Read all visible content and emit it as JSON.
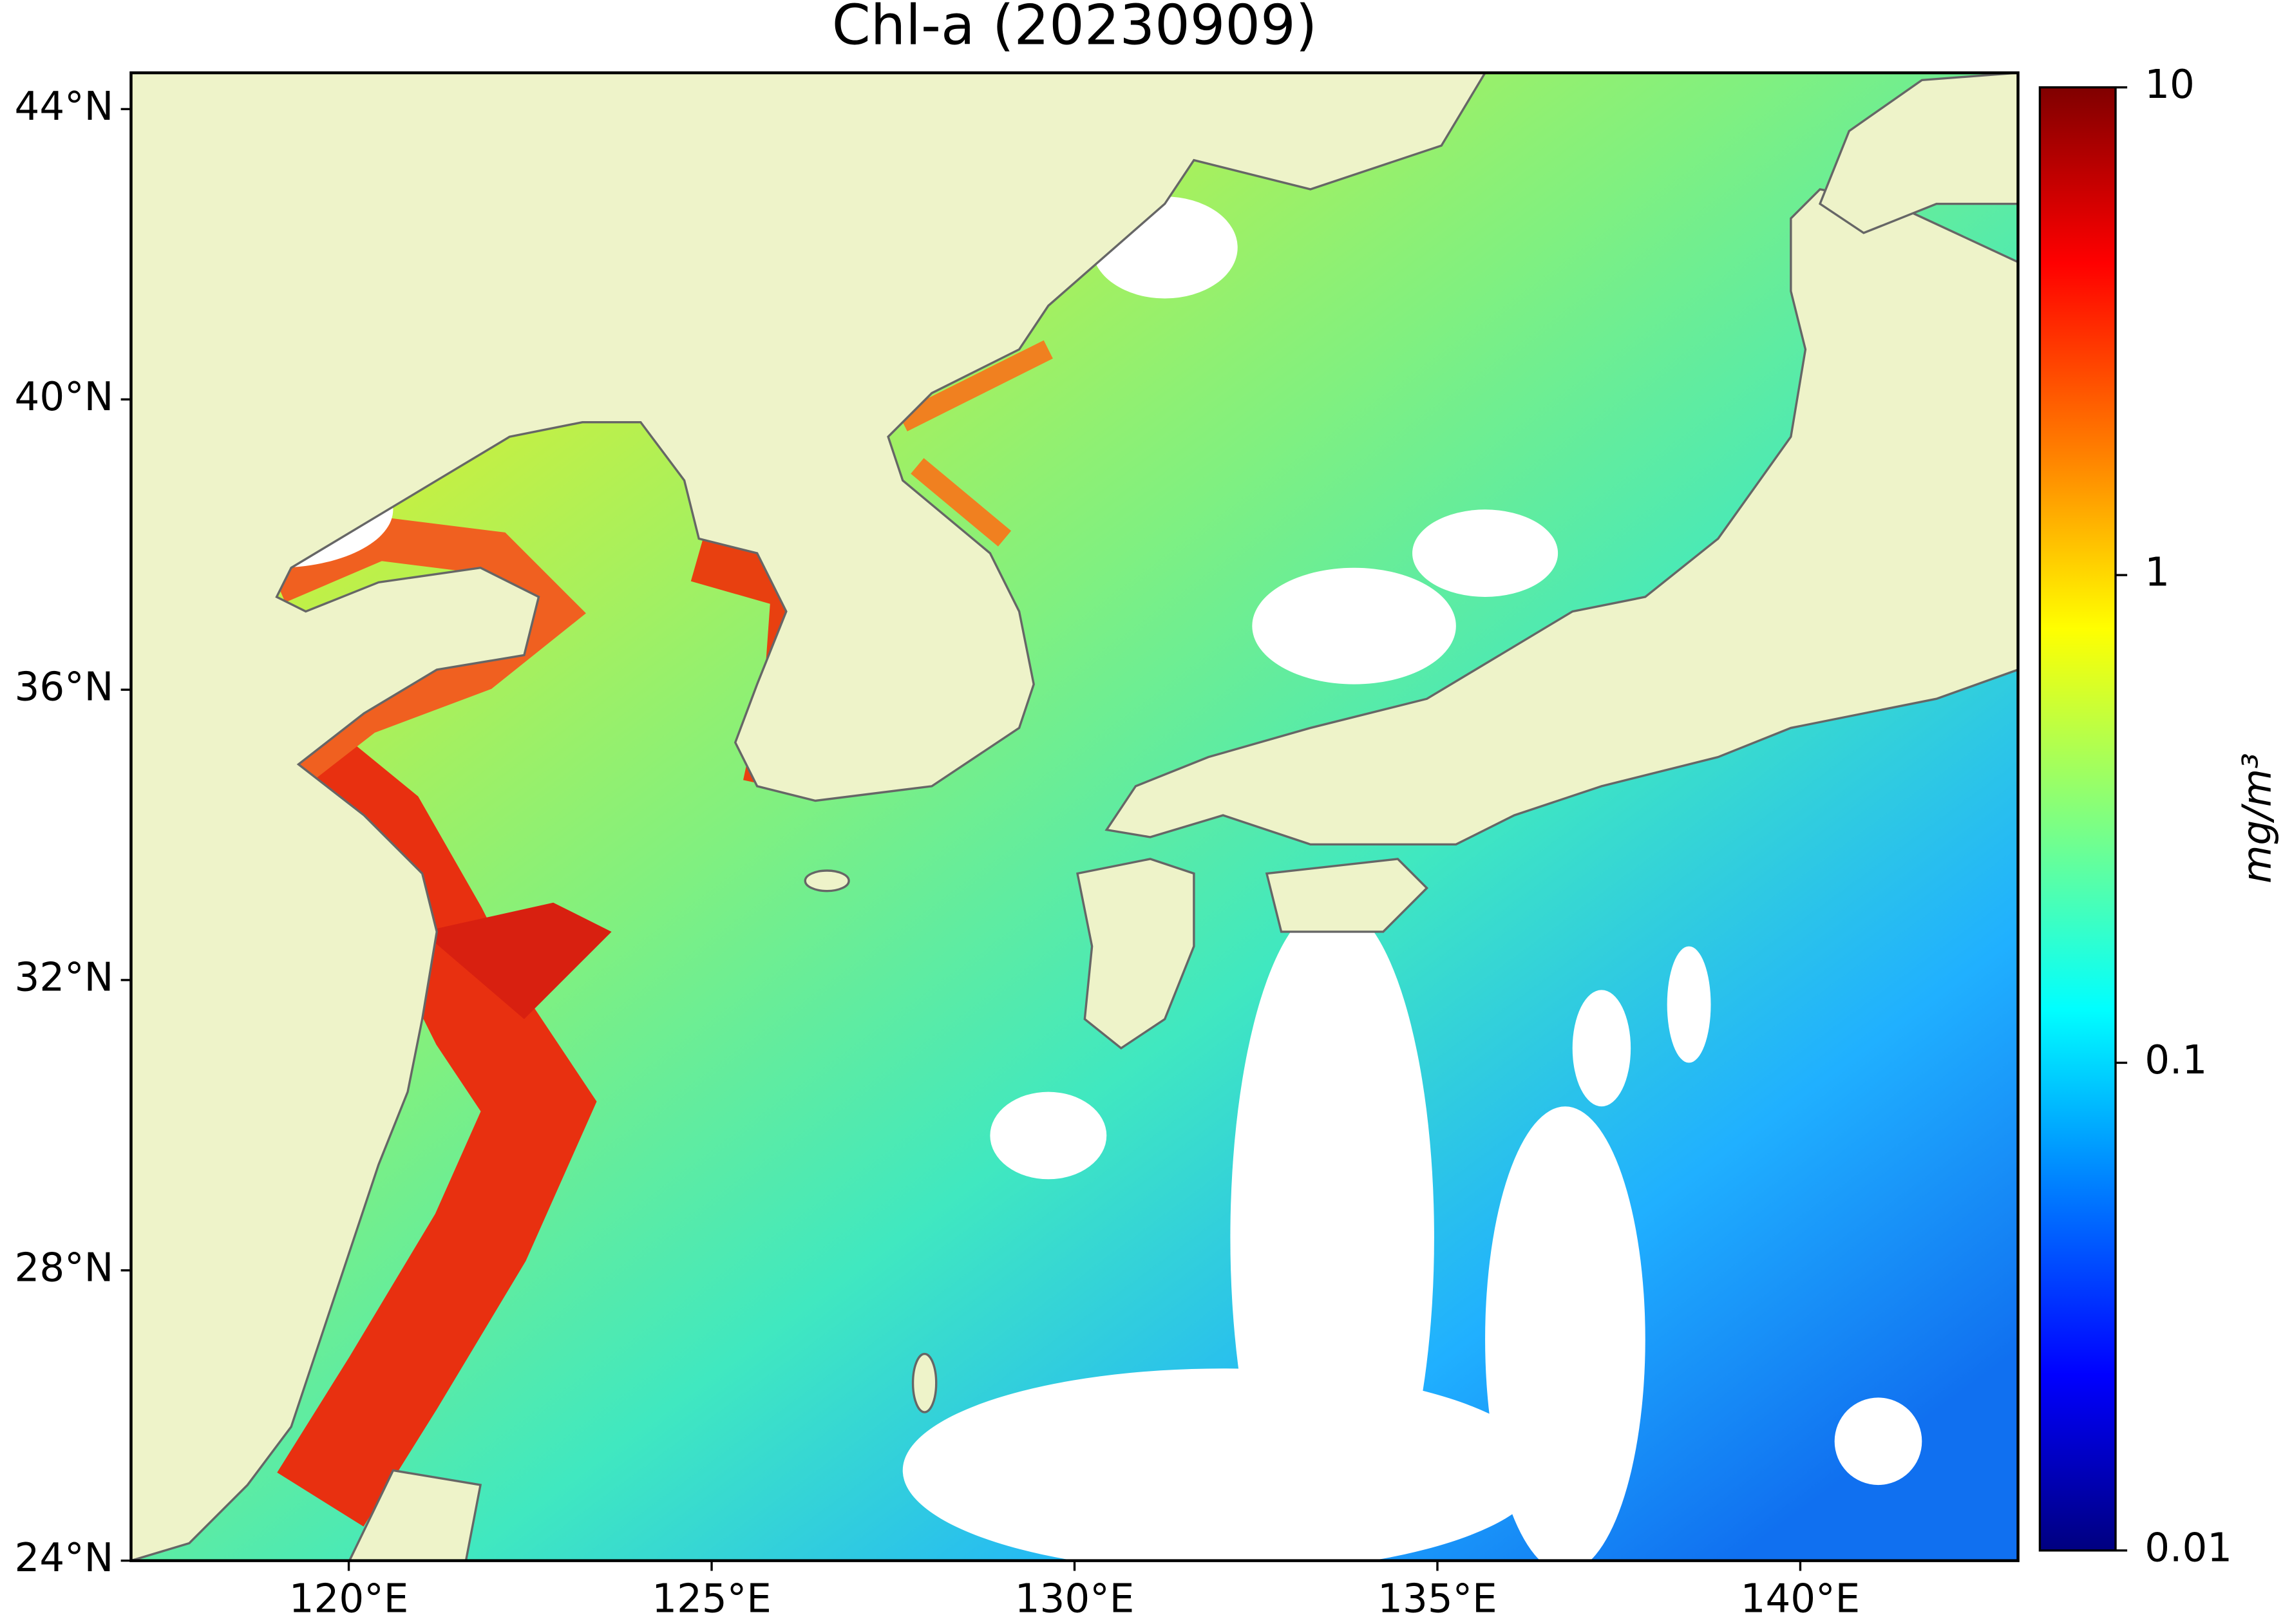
{
  "title": "Chl-a (20230909)",
  "map": {
    "xlim": [
      117,
      143
    ],
    "ylim": [
      24,
      44.5
    ],
    "xticks": [
      {
        "value": 120,
        "label": "120°E"
      },
      {
        "value": 125,
        "label": "125°E"
      },
      {
        "value": 130,
        "label": "130°E"
      },
      {
        "value": 135,
        "label": "135°E"
      },
      {
        "value": 140,
        "label": "140°E"
      }
    ],
    "yticks": [
      {
        "value": 24,
        "label": "24°N"
      },
      {
        "value": 28,
        "label": "28°N"
      },
      {
        "value": 32,
        "label": "32°N"
      },
      {
        "value": 36,
        "label": "36°N"
      },
      {
        "value": 40,
        "label": "40°N"
      },
      {
        "value": 44,
        "label": "44°N"
      }
    ]
  },
  "colorbar": {
    "label": "mg/m³",
    "scale": "log",
    "lim": [
      0.01,
      10
    ],
    "ticks": [
      0.01,
      0.1,
      1,
      10
    ]
  }
}
